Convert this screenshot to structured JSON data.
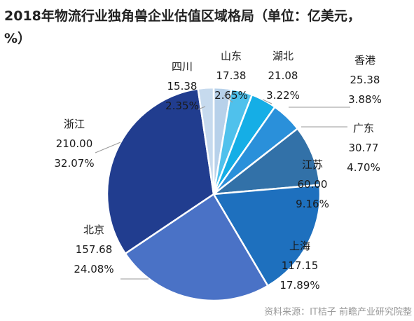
{
  "chart_data": {
    "type": "pie",
    "title": "2018年物流行业独角兽企业估值区域格局（单位：亿美元，%）",
    "title_lines": [
      "2018年物流行业独角兽企业估值区域格局（单位：亿美元，",
      "%）"
    ],
    "source": "资料来源：IT桔子 前瞻产业研究院整",
    "slices": [
      {
        "label": "山东",
        "value": 17.38,
        "value_text": "17.38",
        "percent": "2.65%",
        "color": "#b7d1ea"
      },
      {
        "label": "湖北",
        "value": 21.08,
        "value_text": "21.08",
        "percent": "3.22%",
        "color": "#4fc1ec"
      },
      {
        "label": "香港",
        "value": 25.38,
        "value_text": "25.38",
        "percent": "3.88%",
        "color": "#15aee6"
      },
      {
        "label": "广东",
        "value": 30.77,
        "value_text": "30.77",
        "percent": "4.70%",
        "color": "#2a90da"
      },
      {
        "label": "江苏",
        "value": 60.0,
        "value_text": "60.00",
        "percent": "9.16%",
        "color": "#3271a8"
      },
      {
        "label": "上海",
        "value": 117.15,
        "value_text": "117.15",
        "percent": "17.89%",
        "color": "#1e70be"
      },
      {
        "label": "北京",
        "value": 157.68,
        "value_text": "157.68",
        "percent": "24.08%",
        "color": "#4a72c6"
      },
      {
        "label": "浙江",
        "value": 210.0,
        "value_text": "210.00",
        "percent": "32.07%",
        "color": "#213d8f"
      },
      {
        "label": "四川",
        "value": 15.38,
        "value_text": "15.38",
        "percent": "2.35%",
        "color": "#c6daee"
      }
    ]
  }
}
